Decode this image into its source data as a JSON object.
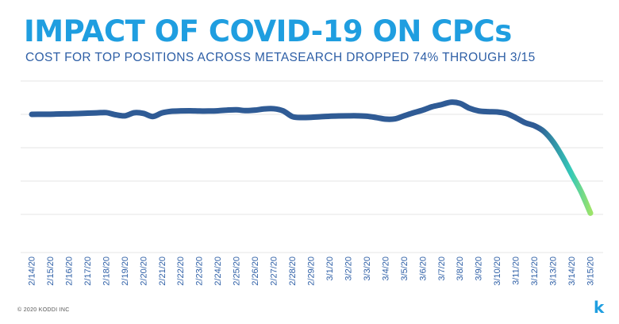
{
  "colors": {
    "title": "#1f9ee0",
    "subtitle": "#2e5fa6",
    "line_main": "#2f5b95",
    "line_end_teal": "#35c9b8",
    "line_end_green": "#9be36a",
    "grid": "#e6e6e6",
    "tick_text": "#2e5fa6",
    "logo": "#1f9ee0"
  },
  "chart_data": {
    "type": "line",
    "title": "IMPACT OF COVID-19 ON CPCs",
    "subtitle": "COST FOR TOP POSITIONS ACROSS METASEARCH DROPPED 74% THROUGH 3/15",
    "xlabel": "",
    "ylabel": "",
    "ylim": [
      0,
      125
    ],
    "grid": true,
    "legend": "none",
    "categories": [
      "2/14/20",
      "2/15/20",
      "2/16/20",
      "2/17/20",
      "2/18/20",
      "2/19/20",
      "2/20/20",
      "2/21/20",
      "2/22/20",
      "2/23/20",
      "2/24/20",
      "2/25/20",
      "2/26/20",
      "2/27/20",
      "2/28/20",
      "2/29/20",
      "3/1/20",
      "3/2/20",
      "3/3/20",
      "3/4/20",
      "3/5/20",
      "3/6/20",
      "3/7/20",
      "3/8/20",
      "3/9/20",
      "3/10/20",
      "3/11/20",
      "3/12/20",
      "3/13/20",
      "3/14/20",
      "3/15/20"
    ],
    "series": [
      {
        "name": "CPC",
        "x": [
          0,
          0.5,
          1,
          1.5,
          2,
          2.5,
          3,
          3.5,
          4,
          4.5,
          5,
          5.5,
          6,
          6.5,
          7,
          7.5,
          8,
          8.5,
          9,
          9.5,
          10,
          10.5,
          11,
          11.5,
          12,
          12.5,
          13,
          13.5,
          14,
          14.5,
          15,
          15.5,
          16,
          16.5,
          17,
          17.5,
          18,
          18.5,
          19,
          19.5,
          20,
          20.5,
          21,
          21.5,
          22,
          22.5,
          23,
          23.5,
          24,
          24.5,
          25,
          25.5,
          26,
          26.5,
          27,
          27.5,
          28,
          28.5,
          29,
          29.5,
          30
        ],
        "values": [
          100,
          100.1,
          100.1,
          100.3,
          100.4,
          100.6,
          100.9,
          101.1,
          101.3,
          99.7,
          98.9,
          101.2,
          100.7,
          98.4,
          101.1,
          102.3,
          102.6,
          102.7,
          102.5,
          102.5,
          102.7,
          103.2,
          103.4,
          102.8,
          103.2,
          104.1,
          104.2,
          102.6,
          98.3,
          97.6,
          97.8,
          98.2,
          98.6,
          98.8,
          98.9,
          98.9,
          98.6,
          97.6,
          96.4,
          96.6,
          98.9,
          101.2,
          103.2,
          105.7,
          107.3,
          109.1,
          108.2,
          104.6,
          102.6,
          102.0,
          101.8,
          100.6,
          97.4,
          93.7,
          91.4,
          87.2,
          79.3,
          68.1,
          55.0,
          42.0,
          26.0
        ]
      }
    ]
  },
  "footer": {
    "copyright": "© 2020 KODDI INC",
    "logo_text": "k"
  }
}
